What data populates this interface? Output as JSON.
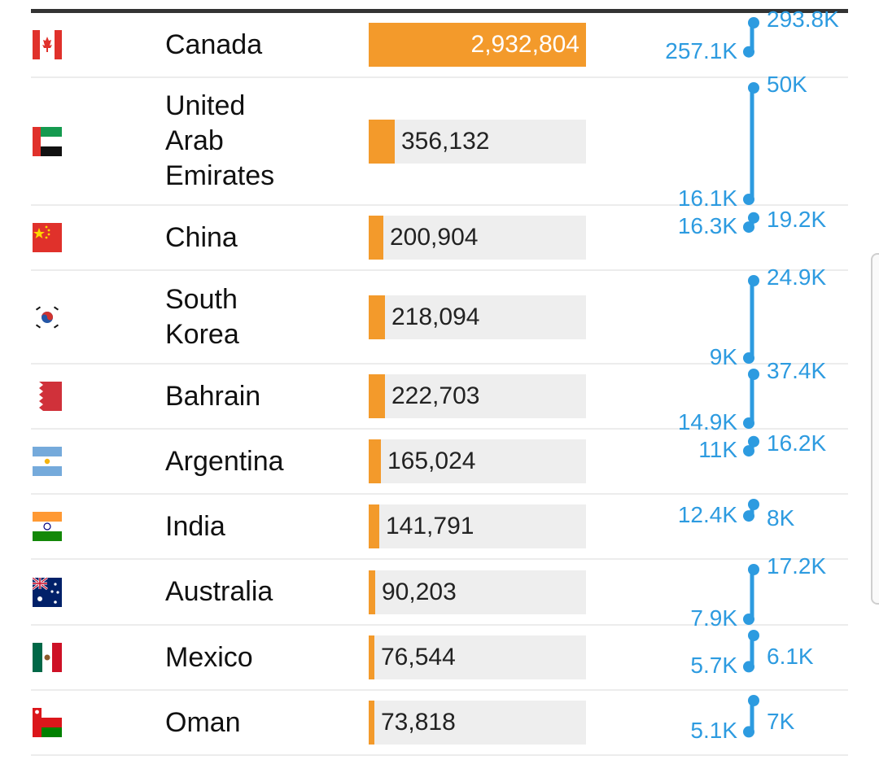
{
  "colors": {
    "bar": "#f39a2b",
    "track": "#eeeeee",
    "spark": "#2d9be0",
    "text": "#111111"
  },
  "rows": [
    {
      "country": "Canada",
      "flag": "canada-flag-icon",
      "value": "2,932,804",
      "fraction": 1.0,
      "inside": true,
      "left_label": "257.1K",
      "right_label": "293.8K"
    },
    {
      "country": "United\nArab\nEmirates",
      "flag": "uae-flag-icon",
      "value": "356,132",
      "fraction": 0.121,
      "inside": false,
      "left_label": "16.1K",
      "right_label": "50K"
    },
    {
      "country": "China",
      "flag": "china-flag-icon",
      "value": "200,904",
      "fraction": 0.068,
      "inside": false,
      "left_label": "16.3K",
      "right_label": "19.2K"
    },
    {
      "country": "South\nKorea",
      "flag": "south-korea-flag-icon",
      "value": "218,094",
      "fraction": 0.074,
      "inside": false,
      "left_label": "9K",
      "right_label": "24.9K"
    },
    {
      "country": "Bahrain",
      "flag": "bahrain-flag-icon",
      "value": "222,703",
      "fraction": 0.076,
      "inside": false,
      "left_label": "14.9K",
      "right_label": "37.4K"
    },
    {
      "country": "Argentina",
      "flag": "argentina-flag-icon",
      "value": "165,024",
      "fraction": 0.056,
      "inside": false,
      "left_label": "11K",
      "right_label": "16.2K"
    },
    {
      "country": "India",
      "flag": "india-flag-icon",
      "value": "141,791",
      "fraction": 0.048,
      "inside": false,
      "left_label": "12.4K",
      "right_label": "8K"
    },
    {
      "country": "Australia",
      "flag": "australia-flag-icon",
      "value": "90,203",
      "fraction": 0.031,
      "inside": false,
      "left_label": "7.9K",
      "right_label": "17.2K"
    },
    {
      "country": "Mexico",
      "flag": "mexico-flag-icon",
      "value": "76,544",
      "fraction": 0.026,
      "inside": false,
      "left_label": "5.7K",
      "right_label": "6.1K"
    },
    {
      "country": "Oman",
      "flag": "oman-flag-icon",
      "value": "73,818",
      "fraction": 0.025,
      "inside": false,
      "left_label": "5.1K",
      "right_label": "7K"
    }
  ]
}
